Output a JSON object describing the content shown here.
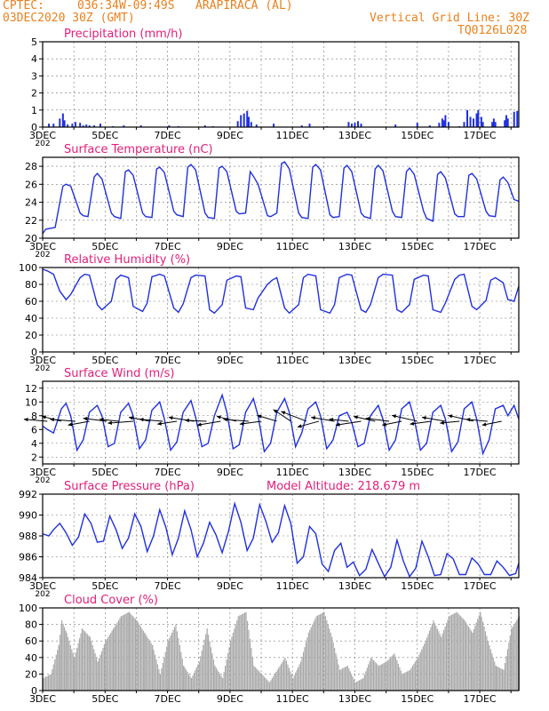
{
  "header": {
    "source": "CPTEC:",
    "location": "036:34W-09:49S   ARAPIRACA (AL)",
    "run": "03DEC2020 30Z (GMT)",
    "grid_note": "Vertical Grid Line: 30Z",
    "code": "TQ0126L028"
  },
  "colors": {
    "header": "#e8801e",
    "panel_title": "#e0207a",
    "series": "#2030e0",
    "cloud": "#a8a8a8",
    "axis": "#000000"
  },
  "x_axis": {
    "tick_labels": [
      "3DEC",
      "5DEC",
      "7DEC",
      "9DEC",
      "11DEC",
      "13DEC",
      "15DEC",
      "17DEC"
    ],
    "truncated_year_label": "202"
  },
  "chart_data": [
    {
      "type": "bar",
      "title": "Precipitation (mm/h)",
      "ylim": [
        0,
        5
      ],
      "yticks": [
        0,
        1,
        2,
        3,
        4,
        5
      ],
      "x_range_days": [
        3,
        18.25
      ],
      "bars": [
        [
          3.2,
          0.2
        ],
        [
          3.35,
          0.2
        ],
        [
          3.55,
          0.5
        ],
        [
          3.65,
          0.8
        ],
        [
          3.7,
          0.4
        ],
        [
          3.8,
          0.15
        ],
        [
          3.95,
          0.2
        ],
        [
          4.05,
          0.3
        ],
        [
          4.2,
          0.25
        ],
        [
          4.3,
          0.1
        ],
        [
          4.4,
          0.15
        ],
        [
          4.5,
          0.1
        ],
        [
          4.65,
          0.1
        ],
        [
          4.85,
          0.2
        ],
        [
          5.25,
          0.05
        ],
        [
          5.6,
          0.1
        ],
        [
          6.15,
          0.1
        ],
        [
          7.05,
          0.1
        ],
        [
          7.35,
          0.05
        ],
        [
          8.2,
          0.1
        ],
        [
          8.45,
          0.05
        ],
        [
          9.25,
          0.35
        ],
        [
          9.35,
          0.7
        ],
        [
          9.45,
          0.8
        ],
        [
          9.55,
          0.95
        ],
        [
          9.6,
          0.6
        ],
        [
          9.68,
          0.3
        ],
        [
          9.85,
          0.15
        ],
        [
          10.4,
          0.2
        ],
        [
          11.3,
          0.1
        ],
        [
          11.55,
          0.2
        ],
        [
          12.1,
          0.05
        ],
        [
          12.8,
          0.3
        ],
        [
          12.9,
          0.2
        ],
        [
          13.0,
          0.25
        ],
        [
          13.1,
          0.35
        ],
        [
          13.2,
          0.2
        ],
        [
          14.3,
          0.15
        ],
        [
          15.0,
          0.25
        ],
        [
          15.4,
          0.1
        ],
        [
          15.7,
          0.25
        ],
        [
          15.8,
          0.5
        ],
        [
          15.85,
          0.4
        ],
        [
          15.9,
          0.7
        ],
        [
          16.0,
          0.3
        ],
        [
          16.35,
          0.05
        ],
        [
          16.5,
          0.3
        ],
        [
          16.6,
          1.0
        ],
        [
          16.7,
          0.6
        ],
        [
          16.8,
          0.5
        ],
        [
          16.9,
          0.8
        ],
        [
          16.95,
          1.0
        ],
        [
          17.05,
          0.6
        ],
        [
          17.1,
          0.3
        ],
        [
          17.4,
          0.3
        ],
        [
          17.45,
          0.5
        ],
        [
          17.5,
          0.3
        ],
        [
          17.8,
          0.4
        ],
        [
          17.85,
          0.7
        ],
        [
          17.9,
          0.5
        ],
        [
          18.1,
          0.9
        ],
        [
          18.2,
          0.95
        ]
      ]
    },
    {
      "type": "line",
      "title": "Surface Temperature (nC)",
      "ylim": [
        20,
        29
      ],
      "yticks": [
        20,
        22,
        24,
        26,
        28
      ],
      "x_range_days": [
        3,
        18.25
      ],
      "x": [
        3.0,
        3.1,
        3.4,
        3.65,
        3.75,
        3.9,
        4.2,
        4.3,
        4.45,
        4.65,
        4.75,
        4.9,
        5.2,
        5.3,
        5.5,
        5.65,
        5.75,
        5.9,
        6.2,
        6.3,
        6.5,
        6.65,
        6.75,
        6.9,
        7.2,
        7.3,
        7.5,
        7.65,
        7.75,
        7.9,
        8.2,
        8.3,
        8.5,
        8.65,
        8.75,
        8.9,
        9.2,
        9.3,
        9.5,
        9.65,
        9.75,
        9.9,
        10.2,
        10.3,
        10.5,
        10.65,
        10.75,
        10.9,
        11.2,
        11.3,
        11.5,
        11.65,
        11.75,
        11.9,
        12.2,
        12.3,
        12.5,
        12.65,
        12.75,
        12.9,
        13.2,
        13.3,
        13.5,
        13.65,
        13.75,
        13.9,
        14.2,
        14.3,
        14.5,
        14.65,
        14.75,
        14.9,
        15.2,
        15.3,
        15.5,
        15.65,
        15.75,
        15.9,
        16.2,
        16.3,
        16.5,
        16.65,
        16.75,
        16.9,
        17.2,
        17.3,
        17.5,
        17.65,
        17.75,
        17.9,
        18.1,
        18.25
      ],
      "values": [
        20.5,
        21.0,
        21.2,
        25.8,
        26.0,
        25.8,
        22.8,
        22.5,
        22.4,
        26.8,
        27.2,
        26.6,
        22.8,
        22.4,
        22.2,
        27.4,
        27.6,
        27.0,
        22.8,
        22.4,
        22.3,
        27.7,
        27.9,
        27.3,
        23.0,
        22.6,
        22.4,
        27.9,
        28.2,
        27.6,
        22.8,
        22.3,
        22.2,
        27.8,
        28.0,
        27.4,
        23.0,
        22.7,
        22.8,
        27.4,
        26.9,
        26.0,
        22.5,
        22.4,
        22.8,
        28.3,
        28.5,
        27.7,
        22.8,
        22.3,
        22.2,
        27.9,
        28.2,
        27.6,
        22.6,
        22.3,
        22.4,
        27.8,
        28.1,
        27.4,
        22.8,
        22.4,
        22.2,
        27.7,
        28.1,
        27.5,
        23.0,
        22.4,
        22.3,
        27.4,
        27.8,
        27.1,
        23.0,
        22.2,
        21.9,
        27.1,
        27.4,
        26.7,
        22.7,
        22.4,
        22.4,
        27.0,
        27.2,
        26.6,
        23.0,
        22.5,
        22.4,
        26.5,
        26.8,
        26.2,
        24.3,
        24.1
      ]
    },
    {
      "type": "line",
      "title": "Relative Humidity (%)",
      "ylim": [
        0,
        100
      ],
      "yticks": [
        0,
        20,
        40,
        60,
        80,
        100
      ],
      "x_range_days": [
        3,
        18.25
      ],
      "x": [
        3.0,
        3.15,
        3.35,
        3.55,
        3.75,
        3.9,
        4.2,
        4.35,
        4.5,
        4.75,
        4.9,
        5.2,
        5.35,
        5.5,
        5.75,
        5.9,
        6.2,
        6.35,
        6.5,
        6.75,
        6.9,
        7.2,
        7.35,
        7.5,
        7.75,
        7.9,
        8.2,
        8.35,
        8.5,
        8.75,
        8.9,
        9.2,
        9.35,
        9.5,
        9.75,
        9.9,
        10.2,
        10.35,
        10.5,
        10.75,
        10.9,
        11.2,
        11.35,
        11.5,
        11.75,
        11.9,
        12.2,
        12.35,
        12.5,
        12.75,
        12.9,
        13.2,
        13.35,
        13.5,
        13.75,
        13.9,
        14.2,
        14.35,
        14.5,
        14.75,
        14.9,
        15.2,
        15.35,
        15.5,
        15.75,
        15.9,
        16.2,
        16.35,
        16.5,
        16.75,
        16.9,
        17.2,
        17.35,
        17.5,
        17.75,
        17.9,
        18.1,
        18.25
      ],
      "values": [
        98,
        96,
        92,
        72,
        62,
        68,
        88,
        92,
        91,
        56,
        50,
        60,
        86,
        91,
        88,
        54,
        48,
        58,
        89,
        92,
        90,
        52,
        47,
        57,
        88,
        91,
        90,
        50,
        46,
        56,
        85,
        90,
        89,
        52,
        50,
        64,
        80,
        85,
        88,
        52,
        46,
        56,
        88,
        92,
        90,
        50,
        46,
        56,
        88,
        92,
        91,
        50,
        47,
        56,
        88,
        92,
        91,
        50,
        47,
        56,
        86,
        91,
        90,
        50,
        47,
        58,
        86,
        91,
        92,
        54,
        50,
        61,
        85,
        88,
        82,
        62,
        60,
        78
      ]
    },
    {
      "type": "line",
      "title": "Surface Wind (m/s)",
      "ylim": [
        1,
        13
      ],
      "yticks": [
        2,
        4,
        6,
        8,
        10,
        12
      ],
      "x_range_days": [
        3,
        18.25
      ],
      "x": [
        3.0,
        3.15,
        3.35,
        3.6,
        3.75,
        3.9,
        4.1,
        4.3,
        4.5,
        4.75,
        4.9,
        5.1,
        5.3,
        5.5,
        5.75,
        5.9,
        6.1,
        6.3,
        6.5,
        6.75,
        6.9,
        7.1,
        7.3,
        7.5,
        7.75,
        7.9,
        8.1,
        8.3,
        8.5,
        8.75,
        8.9,
        9.1,
        9.3,
        9.5,
        9.75,
        9.9,
        10.1,
        10.3,
        10.5,
        10.75,
        10.9,
        11.1,
        11.3,
        11.5,
        11.75,
        11.9,
        12.1,
        12.3,
        12.5,
        12.75,
        12.9,
        13.1,
        13.3,
        13.5,
        13.75,
        13.9,
        14.1,
        14.3,
        14.5,
        14.75,
        14.9,
        15.1,
        15.3,
        15.5,
        15.75,
        15.9,
        16.1,
        16.3,
        16.5,
        16.75,
        16.9,
        17.1,
        17.3,
        17.5,
        17.75,
        17.9,
        18.1,
        18.25
      ],
      "values": [
        6.5,
        6.0,
        5.5,
        9.0,
        9.8,
        8.0,
        3.0,
        4.5,
        8.5,
        9.5,
        8.0,
        3.5,
        4.0,
        8.5,
        9.8,
        8.0,
        3.2,
        4.5,
        8.8,
        10.0,
        7.5,
        3.0,
        4.2,
        8.5,
        10.2,
        7.8,
        3.5,
        4.0,
        8.0,
        11.0,
        8.5,
        3.2,
        3.8,
        8.5,
        10.5,
        8.0,
        2.8,
        4.0,
        8.5,
        10.5,
        8.5,
        3.5,
        5.5,
        9.0,
        10.0,
        8.0,
        3.2,
        4.5,
        8.0,
        8.5,
        7.0,
        3.5,
        4.0,
        8.0,
        9.5,
        7.5,
        3.0,
        4.5,
        9.0,
        10.0,
        7.5,
        3.0,
        4.0,
        8.5,
        9.5,
        7.5,
        2.8,
        4.2,
        9.0,
        10.0,
        7.5,
        2.5,
        4.5,
        9.0,
        9.5,
        8.0,
        9.5,
        7.5
      ],
      "vector_days": [
        3.15,
        3.6,
        4.05,
        4.5,
        5.05,
        5.45,
        5.9,
        6.45,
        6.85,
        7.3,
        7.85,
        8.25,
        8.7,
        9.2,
        9.6,
        10.0,
        10.5,
        10.95,
        11.45,
        11.85,
        12.35,
        12.8,
        13.2,
        13.65,
        14.1,
        14.5,
        15.0,
        15.45,
        15.9,
        16.35,
        16.8,
        17.25,
        17.7
      ],
      "vector_u": [
        -1.2,
        -1.0,
        -1.3,
        -1.1,
        -1.2,
        -1.0,
        -1.3,
        -1.1,
        -1.2,
        -1.0,
        -1.3,
        -1.1,
        -1.2,
        -1.0,
        -1.3,
        -1.1,
        -1.0,
        -0.9,
        -1.3,
        -1.1,
        -1.2,
        -1.0,
        -1.3,
        -1.1,
        -1.2,
        -1.0,
        -1.3,
        -1.1,
        -1.2,
        -1.0,
        -1.3,
        -1.1,
        -1.0
      ],
      "vector_v": [
        0.1,
        0.25,
        0.1,
        -0.2,
        0.15,
        0.1,
        -0.1,
        0.2,
        0.1,
        -0.15,
        0.2,
        0.05,
        -0.2,
        0.25,
        0.1,
        -0.15,
        0.3,
        0.6,
        0.5,
        -0.3,
        0.2,
        0.1,
        -0.2,
        0.25,
        0.15,
        -0.2,
        0.3,
        -0.15,
        0.2,
        -0.1,
        0.3,
        0.1,
        -0.2
      ]
    },
    {
      "type": "line",
      "title": "Surface Pressure (hPa)",
      "annotation": "Model Altitude: 218.679 m",
      "ylim": [
        984,
        992
      ],
      "yticks": [
        984,
        986,
        988,
        990,
        992
      ],
      "x_range_days": [
        3,
        18.25
      ],
      "x": [
        3.0,
        3.2,
        3.35,
        3.55,
        3.75,
        3.95,
        4.15,
        4.35,
        4.55,
        4.75,
        4.95,
        5.15,
        5.35,
        5.55,
        5.75,
        5.95,
        6.15,
        6.35,
        6.55,
        6.75,
        6.95,
        7.15,
        7.35,
        7.55,
        7.75,
        7.95,
        8.15,
        8.35,
        8.55,
        8.75,
        8.95,
        9.15,
        9.35,
        9.55,
        9.75,
        9.95,
        10.15,
        10.35,
        10.55,
        10.75,
        10.95,
        11.15,
        11.35,
        11.55,
        11.75,
        11.95,
        12.15,
        12.35,
        12.55,
        12.75,
        12.95,
        13.15,
        13.35,
        13.55,
        13.75,
        13.95,
        14.15,
        14.35,
        14.55,
        14.75,
        14.95,
        15.15,
        15.35,
        15.55,
        15.75,
        15.95,
        16.15,
        16.35,
        16.55,
        16.75,
        16.95,
        17.15,
        17.35,
        17.55,
        17.75,
        17.95,
        18.15,
        18.25
      ],
      "values": [
        988.2,
        988.0,
        988.6,
        989.2,
        988.3,
        987.1,
        987.9,
        990.1,
        989.2,
        987.4,
        987.5,
        989.9,
        988.6,
        986.8,
        987.8,
        990.1,
        988.9,
        986.5,
        988.0,
        990.5,
        988.8,
        986.2,
        987.8,
        990.4,
        988.6,
        986.0,
        987.3,
        989.3,
        988.1,
        986.4,
        988.4,
        991.1,
        989.3,
        986.6,
        987.8,
        991.0,
        989.4,
        987.4,
        988.3,
        990.9,
        989.2,
        985.4,
        986.0,
        988.9,
        988.2,
        985.3,
        984.6,
        986.6,
        987.3,
        985.0,
        985.5,
        984.2,
        984.8,
        986.7,
        985.4,
        984.1,
        985.0,
        987.6,
        985.6,
        984.1,
        984.9,
        987.5,
        986.0,
        984.2,
        984.3,
        986.3,
        985.8,
        984.3,
        984.3,
        985.9,
        985.3,
        984.3,
        984.3,
        985.6,
        985.0,
        984.2,
        984.4,
        985.4
      ]
    },
    {
      "type": "bar",
      "title": "Cloud Cover (%)",
      "ylim": [
        0,
        100
      ],
      "yticks": [
        0,
        20,
        40,
        60,
        80,
        100
      ],
      "x_range_days": [
        3,
        18.25
      ],
      "x": [
        3.0,
        3.25,
        3.5,
        3.6,
        3.75,
        4.0,
        4.25,
        4.5,
        4.75,
        5.0,
        5.25,
        5.5,
        5.75,
        6.0,
        6.25,
        6.5,
        6.75,
        7.0,
        7.25,
        7.5,
        7.75,
        8.0,
        8.25,
        8.5,
        8.75,
        9.0,
        9.25,
        9.5,
        9.75,
        10.0,
        10.25,
        10.5,
        10.75,
        11.0,
        11.25,
        11.5,
        11.75,
        12.0,
        12.25,
        12.5,
        12.75,
        13.0,
        13.25,
        13.5,
        13.75,
        14.0,
        14.25,
        14.5,
        14.75,
        15.0,
        15.25,
        15.5,
        15.75,
        16.0,
        16.25,
        16.5,
        16.75,
        17.0,
        17.25,
        17.5,
        17.75,
        18.0,
        18.25
      ],
      "values": [
        15,
        20,
        55,
        85,
        70,
        40,
        75,
        65,
        35,
        60,
        75,
        90,
        95,
        85,
        70,
        55,
        20,
        60,
        80,
        30,
        15,
        35,
        75,
        30,
        15,
        60,
        90,
        95,
        30,
        20,
        10,
        25,
        40,
        15,
        35,
        70,
        90,
        95,
        65,
        25,
        30,
        10,
        15,
        40,
        30,
        35,
        45,
        20,
        25,
        40,
        60,
        85,
        65,
        90,
        95,
        85,
        70,
        95,
        60,
        30,
        25,
        75,
        90
      ]
    }
  ]
}
